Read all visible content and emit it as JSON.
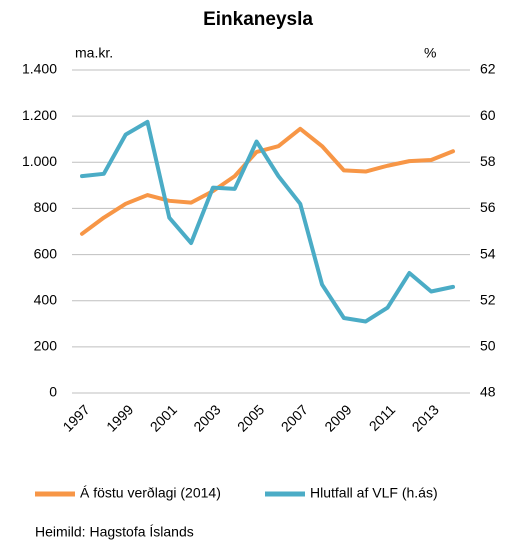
{
  "chart_data": {
    "type": "line",
    "title": "Einkaneysla",
    "ylabel": "ma.kr.",
    "y2label": "%",
    "source": "Heimild: Hagstofa Íslands",
    "categories": [
      "1997",
      null,
      "1999",
      null,
      "2001",
      null,
      "2003",
      null,
      "2005",
      null,
      "2007",
      null,
      "2009",
      null,
      "2011",
      null,
      "2013",
      null
    ],
    "series": [
      {
        "name": "Á föstu verðlagi (2014)",
        "color": "#f79646",
        "axis": "y",
        "values": [
          690,
          760,
          820,
          858,
          833,
          825,
          875,
          940,
          1045,
          1070,
          1145,
          1070,
          965,
          960,
          985,
          1005,
          1010,
          1048
        ]
      },
      {
        "name": "Hlutfall af VLF (h.ás)",
        "color": "#4bacc6",
        "axis": "y2",
        "values": [
          57.4,
          57.5,
          59.2,
          59.75,
          55.6,
          54.5,
          56.9,
          56.85,
          58.9,
          57.4,
          56.2,
          52.7,
          51.25,
          51.1,
          51.7,
          53.2,
          52.4,
          52.6
        ]
      }
    ],
    "ylim": [
      0,
      1400
    ],
    "yticks": [
      0,
      200,
      400,
      600,
      800,
      {
        "value": 1000,
        "label": "1.000"
      },
      {
        "value": 1200,
        "label": "1.200"
      },
      {
        "value": 1400,
        "label": "1.400"
      }
    ],
    "y2lim": [
      48,
      62
    ],
    "y2ticks": [
      48,
      50,
      52,
      54,
      56,
      58,
      60,
      62
    ],
    "grid": true,
    "legend": "bottom"
  }
}
